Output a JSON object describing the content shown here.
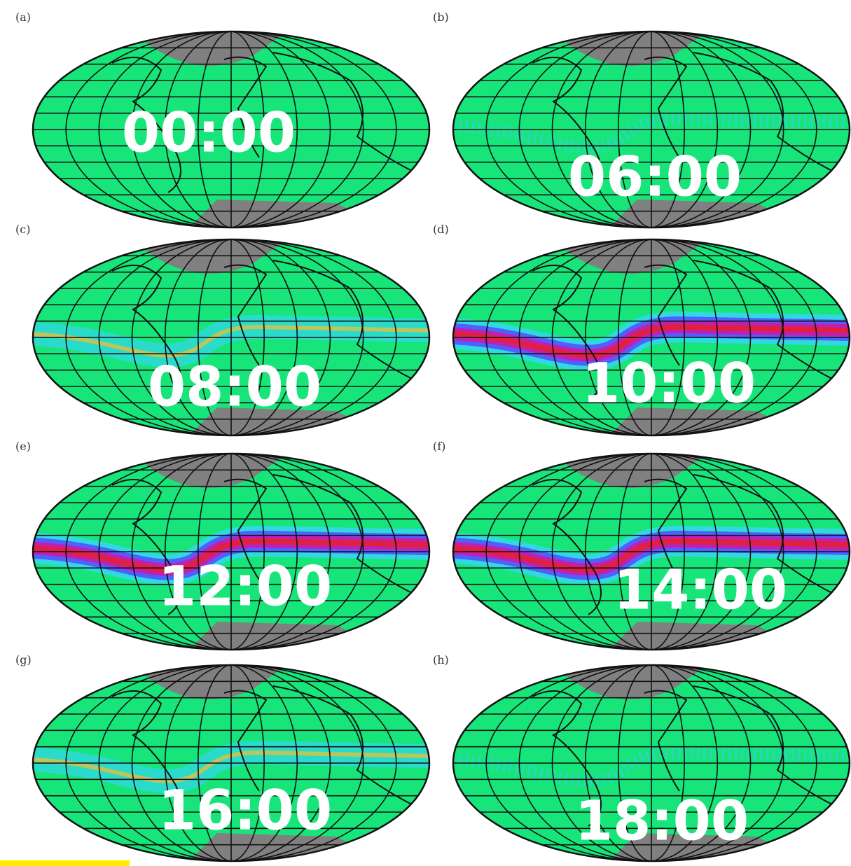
{
  "panels": [
    {
      "label": "(a)",
      "time": "00:00"
    },
    {
      "label": "(b)",
      "time": "06:00"
    },
    {
      "label": "(c)",
      "time": "08:00"
    },
    {
      "label": "(d)",
      "time": "10:00"
    },
    {
      "label": "(e)",
      "time": "12:00"
    },
    {
      "label": "(f)",
      "time": "14:00"
    },
    {
      "label": "(g)",
      "time": "16:00"
    },
    {
      "label": "(h)",
      "time": "18:00"
    }
  ]
}
